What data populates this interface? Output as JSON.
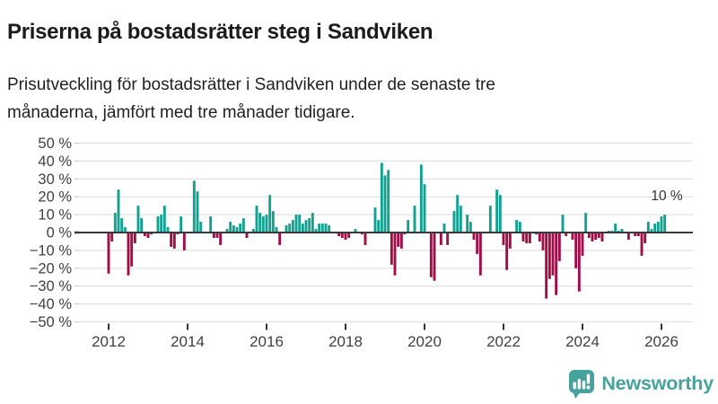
{
  "header": {
    "title": "Priserna på bostadsrätter steg i Sandviken",
    "subtitle": "Prisutveckling för bostadsrätter i Sandviken under de senaste tre månaderna, jämfört med tre månader tidigare."
  },
  "chart_data": {
    "type": "bar",
    "title": "Priserna på bostadsrätter steg i Sandviken",
    "xlabel": "",
    "ylabel": "",
    "unit": "%",
    "ylim": [
      -50,
      50
    ],
    "grid": true,
    "start_month": "2012-01",
    "end_month": "2026-02",
    "x_tick_labels": [
      "2012",
      "2014",
      "2016",
      "2018",
      "2020",
      "2022",
      "2024",
      "2026"
    ],
    "y_tick_labels": [
      "50 %",
      "40 %",
      "30 %",
      "20 %",
      "10 %",
      "0 %",
      "−10 %",
      "−20 %",
      "−30 %",
      "−40 %",
      "−50 %"
    ],
    "y_tick_values": [
      50,
      40,
      30,
      20,
      10,
      0,
      -10,
      -20,
      -30,
      -40,
      -50
    ],
    "annotation": {
      "text": "10 %",
      "month": "2026-02",
      "value": 10
    },
    "colors": {
      "positive": "#12a191",
      "negative": "#a00d49",
      "gridline": "#e4e4e4",
      "axis": "#3a3a3a",
      "tick_text": "#404040"
    },
    "values": [
      -23,
      -5,
      11,
      24,
      8,
      3,
      -24,
      -19,
      -6,
      15,
      8,
      -2,
      -3,
      -1,
      0,
      9,
      10,
      15,
      3,
      -8,
      -9,
      -1,
      9,
      -10,
      0,
      0,
      29,
      23,
      6,
      0,
      0,
      9,
      -3,
      -3,
      -7,
      0,
      2,
      6,
      4,
      3,
      5,
      8,
      -3,
      0,
      2,
      15,
      11,
      9,
      10,
      21,
      12,
      3,
      -7,
      0,
      4,
      5,
      7,
      10,
      10,
      5,
      7,
      8,
      11,
      2,
      5,
      5,
      5,
      4,
      0,
      0,
      -2,
      -3,
      -4,
      -3,
      0,
      2,
      0,
      -1,
      -7,
      0,
      0,
      14,
      7,
      39,
      32,
      35,
      -18,
      -24,
      -8,
      -9,
      -1,
      7,
      0,
      15,
      0,
      38,
      27,
      0,
      -25,
      -27,
      0,
      -7,
      5,
      -7,
      0,
      12,
      21,
      15,
      0,
      10,
      6,
      -4,
      -12,
      -24,
      0,
      0,
      15,
      0,
      24,
      21,
      -7,
      -21,
      -9,
      0,
      7,
      6,
      -5,
      -6,
      -6,
      0,
      -1,
      -5,
      -10,
      -37,
      -26,
      -24,
      -35,
      -16,
      10,
      -2,
      0,
      -4,
      -20,
      -33,
      -13,
      11,
      -3,
      -5,
      -4,
      -3,
      -5,
      0,
      1,
      1,
      5,
      1,
      2,
      0,
      -4,
      0,
      -2,
      -2,
      -13,
      -6,
      6,
      2,
      5,
      6,
      9,
      10
    ]
  },
  "footer": {
    "brand": "Newsworthy",
    "logo_icon": "bar-chart-speech-bubble-icon",
    "logo_color": "#45a29c"
  }
}
